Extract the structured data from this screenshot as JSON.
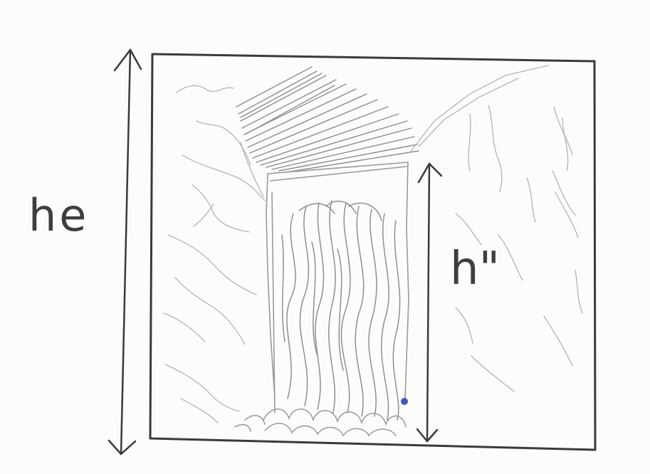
{
  "labels": {
    "total_height": "he",
    "fall_height": "h\""
  },
  "colors": {
    "paper": "#fcfcfb",
    "pencil_dark": "#3a3a3a",
    "pencil_light": "#9a9a9a",
    "pencil_faint": "#b8b8b8",
    "ink_dot": "#1f3fae"
  }
}
